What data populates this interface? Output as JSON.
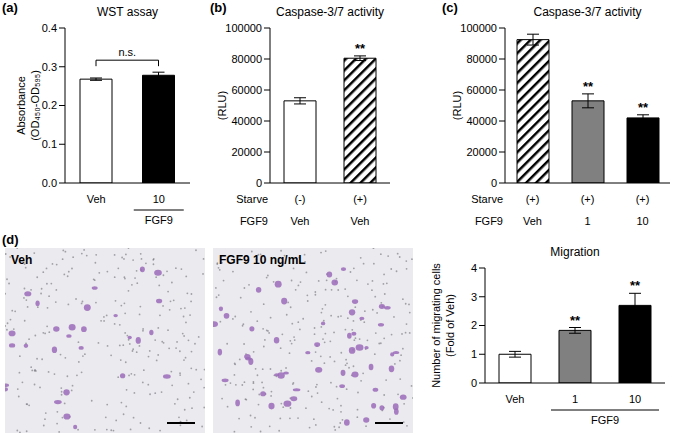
{
  "chart_data": [
    {
      "type": "bar",
      "panel": "(a)",
      "title": "WST assay",
      "ylabel": [
        "Absorbance",
        "(OD₄₅₀-OD₅₉₅)"
      ],
      "categories": [
        "Veh",
        "10"
      ],
      "values": [
        0.268,
        0.278
      ],
      "errors": [
        0.003,
        0.008
      ],
      "colors": [
        "#ffffff",
        "#000000"
      ],
      "ylim": [
        0,
        0.4
      ],
      "yticks": [
        {
          "value": 0,
          "label": "0.0"
        },
        0.1,
        0.2,
        0.3,
        0.4
      ],
      "group": {
        "label": "FGF9",
        "members": [
          1
        ]
      },
      "bracket": {
        "label": "n.s.",
        "from": 0,
        "to": 1
      }
    },
    {
      "type": "bar",
      "panel": "(b)",
      "title": "Caspase-3/7 activity",
      "ylabel": [
        "(RLU)"
      ],
      "categories": [
        "(-)",
        "(+)"
      ],
      "category_title": "Starve",
      "row2": {
        "title": "FGF9",
        "labels": [
          "Veh",
          "Veh"
        ]
      },
      "values": [
        53000,
        80500
      ],
      "errors": [
        2000,
        1500
      ],
      "colors": [
        "#ffffff",
        "url(#hatch)"
      ],
      "significance": [
        null,
        "**"
      ],
      "ylim": [
        0,
        100000
      ],
      "yticks": [
        0,
        20000,
        40000,
        60000,
        80000,
        100000
      ]
    },
    {
      "type": "bar",
      "panel": "(c)",
      "title": "Caspase-3/7 activity",
      "ylabel": [
        "(RLU)"
      ],
      "categories": [
        "(+)",
        "(+)",
        "(+)"
      ],
      "category_title": "Starve",
      "row2": {
        "title": "FGF9",
        "labels": [
          "Veh",
          "1",
          "10"
        ]
      },
      "values": [
        92500,
        53000,
        42000
      ],
      "errors": [
        3500,
        4500,
        2000
      ],
      "colors": [
        "url(#hatch)",
        "#808080",
        "#000000"
      ],
      "significance": [
        null,
        "**",
        "**"
      ],
      "ylim": [
        0,
        100000
      ],
      "yticks": [
        0,
        20000,
        40000,
        60000,
        80000,
        100000
      ]
    },
    {
      "type": "bar",
      "panel": "(d)",
      "title": "Migration",
      "ylabel": [
        "Number of migrating cells",
        "(Fold of Veh)"
      ],
      "categories": [
        "Veh",
        "1",
        "10"
      ],
      "values": [
        1,
        1.83,
        2.7
      ],
      "errors": [
        0.1,
        0.1,
        0.42
      ],
      "colors": [
        "#ffffff",
        "#808080",
        "#000000"
      ],
      "significance": [
        null,
        "**",
        "**"
      ],
      "ylim": [
        0,
        4
      ],
      "yticks": [
        0,
        1,
        2,
        3,
        4
      ],
      "group": {
        "label": "FGF9",
        "members": [
          1,
          2
        ]
      }
    }
  ],
  "images": [
    {
      "label": "Veh"
    },
    {
      "label": "FGF9 10 ng/mL"
    }
  ]
}
